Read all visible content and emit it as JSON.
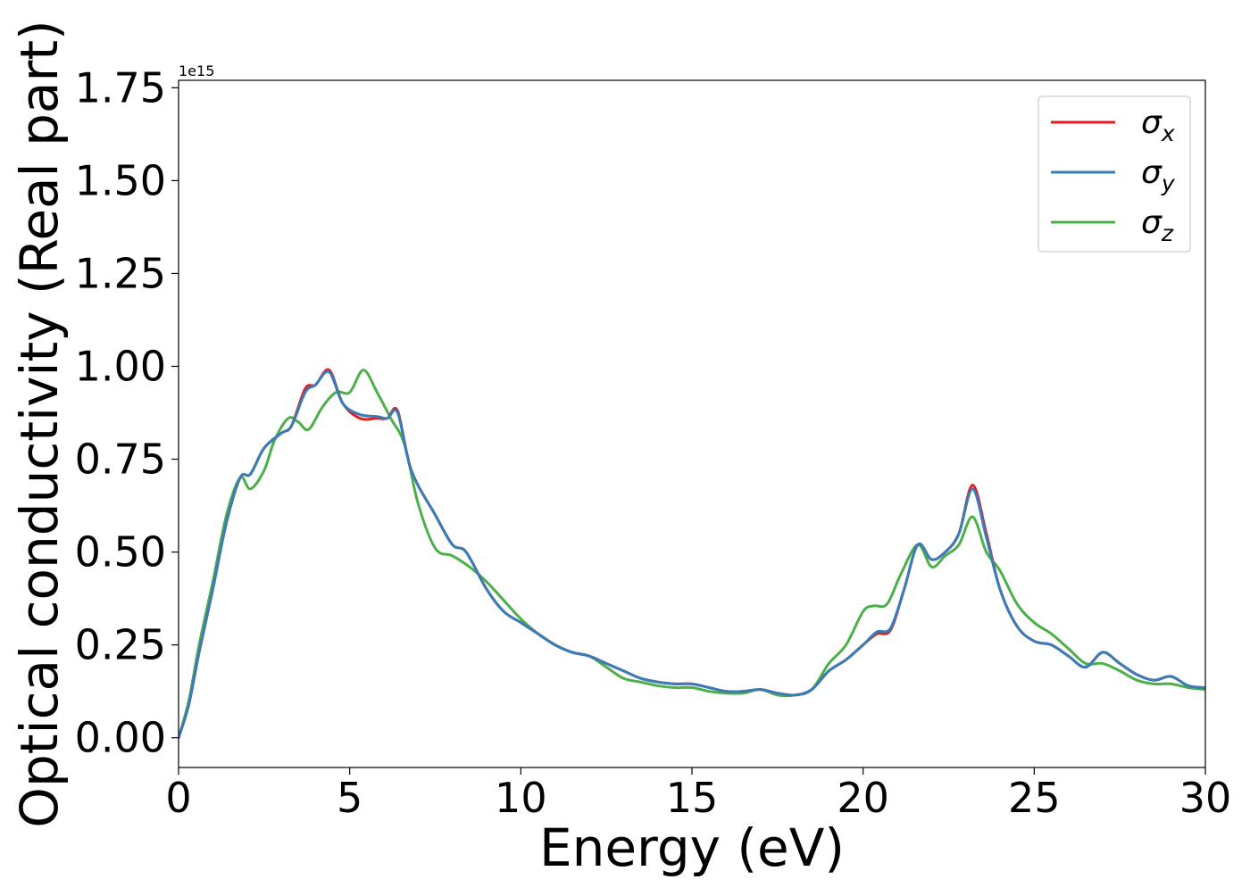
{
  "chart_data": {
    "type": "line",
    "title": "",
    "xlabel": "Energy (eV)",
    "ylabel": "Optical conductivity (Real part)",
    "y_offset_text": "1e15",
    "xlim": [
      0,
      30
    ],
    "ylim": [
      -0.08,
      1.77
    ],
    "xticks": [
      0,
      5,
      10,
      15,
      20,
      25,
      30
    ],
    "xtick_labels": [
      "0",
      "5",
      "10",
      "15",
      "20",
      "25",
      "30"
    ],
    "yticks": [
      0.0,
      0.25,
      0.5,
      0.75,
      1.0,
      1.25,
      1.5,
      1.75
    ],
    "ytick_labels": [
      "0.00",
      "0.25",
      "0.50",
      "0.75",
      "1.00",
      "1.25",
      "1.50",
      "1.75"
    ],
    "grid": false,
    "legend_position": "top-right",
    "series": [
      {
        "name": "σx",
        "symbol": "σ",
        "subscript": "x",
        "color": "#e41a1c",
        "x": [
          0,
          0.3,
          0.6,
          1.0,
          1.4,
          1.8,
          2.1,
          2.5,
          3.0,
          3.3,
          3.7,
          4.0,
          4.4,
          4.8,
          5.3,
          5.8,
          6.1,
          6.4,
          6.8,
          7.5,
          8.0,
          8.4,
          9.0,
          9.5,
          10.0,
          10.5,
          11.0,
          11.5,
          12.0,
          12.5,
          13.0,
          13.5,
          14.0,
          14.5,
          15.0,
          15.5,
          16.0,
          16.5,
          17.0,
          17.5,
          18.0,
          18.5,
          19.0,
          19.5,
          20.0,
          20.4,
          20.8,
          21.2,
          21.6,
          22.0,
          22.4,
          22.8,
          23.2,
          23.6,
          24.0,
          24.5,
          25.0,
          25.5,
          26.0,
          26.5,
          27.0,
          27.5,
          28.0,
          28.5,
          29.0,
          29.5,
          30.0
        ],
        "y": [
          0.0,
          0.09,
          0.23,
          0.4,
          0.58,
          0.7,
          0.71,
          0.78,
          0.82,
          0.84,
          0.94,
          0.95,
          0.99,
          0.9,
          0.86,
          0.86,
          0.86,
          0.88,
          0.72,
          0.6,
          0.52,
          0.5,
          0.4,
          0.34,
          0.31,
          0.28,
          0.25,
          0.23,
          0.22,
          0.2,
          0.18,
          0.16,
          0.15,
          0.145,
          0.145,
          0.135,
          0.125,
          0.125,
          0.13,
          0.12,
          0.115,
          0.13,
          0.18,
          0.21,
          0.25,
          0.28,
          0.29,
          0.4,
          0.52,
          0.48,
          0.5,
          0.55,
          0.68,
          0.55,
          0.4,
          0.3,
          0.26,
          0.25,
          0.22,
          0.19,
          0.23,
          0.2,
          0.17,
          0.155,
          0.165,
          0.14,
          0.135
        ]
      },
      {
        "name": "σy",
        "symbol": "σ",
        "subscript": "y",
        "color": "#377eb8",
        "x": [
          0,
          0.3,
          0.6,
          1.0,
          1.4,
          1.8,
          2.1,
          2.5,
          3.0,
          3.3,
          3.7,
          4.0,
          4.4,
          4.8,
          5.3,
          5.8,
          6.1,
          6.4,
          6.8,
          7.5,
          8.0,
          8.4,
          9.0,
          9.5,
          10.0,
          10.5,
          11.0,
          11.5,
          12.0,
          12.5,
          13.0,
          13.5,
          14.0,
          14.5,
          15.0,
          15.5,
          16.0,
          16.5,
          17.0,
          17.5,
          18.0,
          18.5,
          19.0,
          19.5,
          20.0,
          20.4,
          20.8,
          21.2,
          21.6,
          22.0,
          22.4,
          22.8,
          23.2,
          23.6,
          24.0,
          24.5,
          25.0,
          25.5,
          26.0,
          26.5,
          27.0,
          27.5,
          28.0,
          28.5,
          29.0,
          29.5,
          30.0
        ],
        "y": [
          0.0,
          0.09,
          0.23,
          0.4,
          0.58,
          0.7,
          0.71,
          0.78,
          0.82,
          0.84,
          0.93,
          0.95,
          0.985,
          0.9,
          0.87,
          0.865,
          0.86,
          0.875,
          0.72,
          0.6,
          0.52,
          0.5,
          0.4,
          0.34,
          0.31,
          0.28,
          0.25,
          0.23,
          0.22,
          0.2,
          0.18,
          0.16,
          0.15,
          0.145,
          0.145,
          0.135,
          0.125,
          0.125,
          0.13,
          0.12,
          0.115,
          0.13,
          0.18,
          0.21,
          0.25,
          0.285,
          0.295,
          0.4,
          0.52,
          0.48,
          0.5,
          0.55,
          0.67,
          0.54,
          0.4,
          0.3,
          0.26,
          0.25,
          0.22,
          0.19,
          0.23,
          0.2,
          0.17,
          0.155,
          0.165,
          0.14,
          0.135
        ]
      },
      {
        "name": "σz",
        "symbol": "σ",
        "subscript": "z",
        "color": "#4daf4a",
        "x": [
          0,
          0.3,
          0.6,
          1.0,
          1.4,
          1.8,
          2.1,
          2.5,
          2.8,
          3.2,
          3.5,
          3.8,
          4.2,
          4.6,
          5.0,
          5.4,
          5.8,
          6.2,
          6.6,
          7.0,
          7.5,
          8.0,
          8.5,
          9.0,
          9.5,
          10.0,
          10.5,
          11.0,
          11.5,
          12.0,
          12.5,
          13.0,
          13.5,
          14.0,
          14.5,
          15.0,
          15.5,
          16.0,
          16.5,
          17.0,
          17.5,
          18.0,
          18.5,
          19.0,
          19.5,
          20.0,
          20.3,
          20.7,
          21.1,
          21.6,
          22.0,
          22.4,
          22.8,
          23.2,
          23.6,
          24.0,
          24.5,
          25.0,
          25.5,
          26.0,
          26.5,
          27.0,
          27.5,
          28.0,
          28.5,
          29.0,
          29.5,
          30.0
        ],
        "y": [
          0.0,
          0.1,
          0.25,
          0.42,
          0.6,
          0.7,
          0.67,
          0.72,
          0.8,
          0.86,
          0.85,
          0.83,
          0.89,
          0.93,
          0.93,
          0.99,
          0.93,
          0.86,
          0.79,
          0.63,
          0.51,
          0.49,
          0.46,
          0.42,
          0.37,
          0.32,
          0.28,
          0.25,
          0.23,
          0.22,
          0.19,
          0.16,
          0.15,
          0.14,
          0.135,
          0.135,
          0.125,
          0.12,
          0.12,
          0.13,
          0.115,
          0.115,
          0.13,
          0.2,
          0.25,
          0.34,
          0.355,
          0.36,
          0.44,
          0.52,
          0.46,
          0.49,
          0.52,
          0.595,
          0.5,
          0.45,
          0.36,
          0.31,
          0.28,
          0.24,
          0.2,
          0.2,
          0.18,
          0.155,
          0.145,
          0.145,
          0.135,
          0.13
        ]
      }
    ]
  }
}
